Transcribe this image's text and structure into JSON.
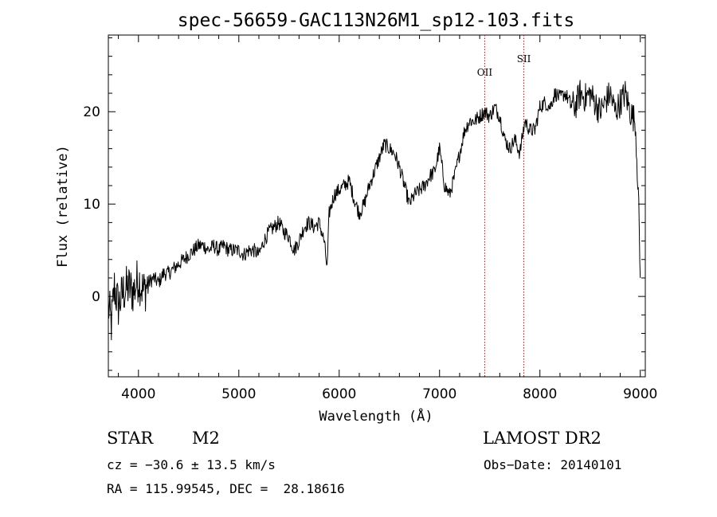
{
  "chart_data": {
    "type": "line",
    "title": "spec-56659-GAC113N26M1_sp12-103.fits",
    "xlabel": "Wavelength (Å)",
    "ylabel": "Flux (relative)",
    "xlim": [
      3700,
      9050
    ],
    "ylim": [
      -8.7,
      28.3
    ],
    "xticks": [
      4000,
      5000,
      6000,
      7000,
      8000,
      9000
    ],
    "yticks": [
      0,
      10,
      20
    ],
    "color": "#000000",
    "line_color": "#cc0000",
    "grid": false,
    "emission_lines": [
      {
        "label": "OII",
        "x": 7450
      },
      {
        "label": "SII",
        "x": 7840
      }
    ],
    "series": [
      {
        "x": [
          3700,
          3730,
          3760,
          3800,
          3850,
          3900,
          3950,
          4000,
          4050,
          4100,
          4150,
          4200,
          4250,
          4300,
          4350,
          4400,
          4450,
          4500,
          4550,
          4600,
          4650,
          4700,
          4750,
          4800,
          4850,
          4900,
          4950,
          5000,
          5050,
          5100,
          5150,
          5200,
          5250,
          5300,
          5350,
          5400,
          5450,
          5500,
          5550,
          5600,
          5650,
          5700,
          5750,
          5800,
          5850,
          5880,
          5900,
          5950,
          6000,
          6050,
          6100,
          6150,
          6200,
          6250,
          6300,
          6350,
          6400,
          6450,
          6500,
          6550,
          6600,
          6650,
          6700,
          6750,
          6800,
          6850,
          6900,
          6950,
          7000,
          7050,
          7100,
          7150,
          7200,
          7250,
          7300,
          7350,
          7400,
          7450,
          7500,
          7550,
          7600,
          7650,
          7700,
          7750,
          7800,
          7850,
          7900,
          7950,
          8000,
          8050,
          8100,
          8150,
          8200,
          8250,
          8300,
          8350,
          8400,
          8450,
          8500,
          8550,
          8600,
          8650,
          8700,
          8750,
          8800,
          8850,
          8900,
          8950,
          8980,
          9000
        ],
        "y": [
          -1,
          -3,
          1,
          -1,
          0.5,
          1,
          0.5,
          2,
          0.5,
          1.5,
          2,
          1.5,
          2.5,
          2.5,
          3,
          3.5,
          4,
          4.5,
          5,
          5.5,
          5.5,
          5,
          5.5,
          5,
          5.5,
          5,
          5,
          5,
          4.5,
          5,
          5,
          4.5,
          6,
          7,
          7.5,
          8,
          7,
          6.5,
          5,
          6,
          7.5,
          8,
          7.5,
          8,
          6,
          3,
          9,
          11,
          11.5,
          12,
          12.5,
          10.5,
          9,
          10,
          12,
          13.5,
          15,
          16.5,
          16,
          15.5,
          14,
          12,
          10,
          11,
          11.5,
          12,
          13,
          13.5,
          16,
          12,
          11,
          13,
          15.5,
          18,
          19,
          19,
          19.5,
          20,
          19.5,
          20.5,
          19.5,
          17,
          16,
          17,
          15.5,
          19,
          18,
          18,
          20.5,
          21,
          20.5,
          22,
          21.5,
          22,
          21,
          20.5,
          22,
          21.5,
          22,
          21,
          20,
          21,
          22,
          20,
          21,
          22,
          20,
          19,
          11.5,
          2
        ]
      }
    ]
  },
  "info": {
    "object_type": "STAR",
    "subclass": "M2",
    "survey": "LAMOST DR2",
    "cz": "cz = −30.6 ± 13.5 km/s",
    "obs_date": "Obs−Date: 20140101",
    "coords": "RA = 115.99545, DEC =  28.18616"
  }
}
